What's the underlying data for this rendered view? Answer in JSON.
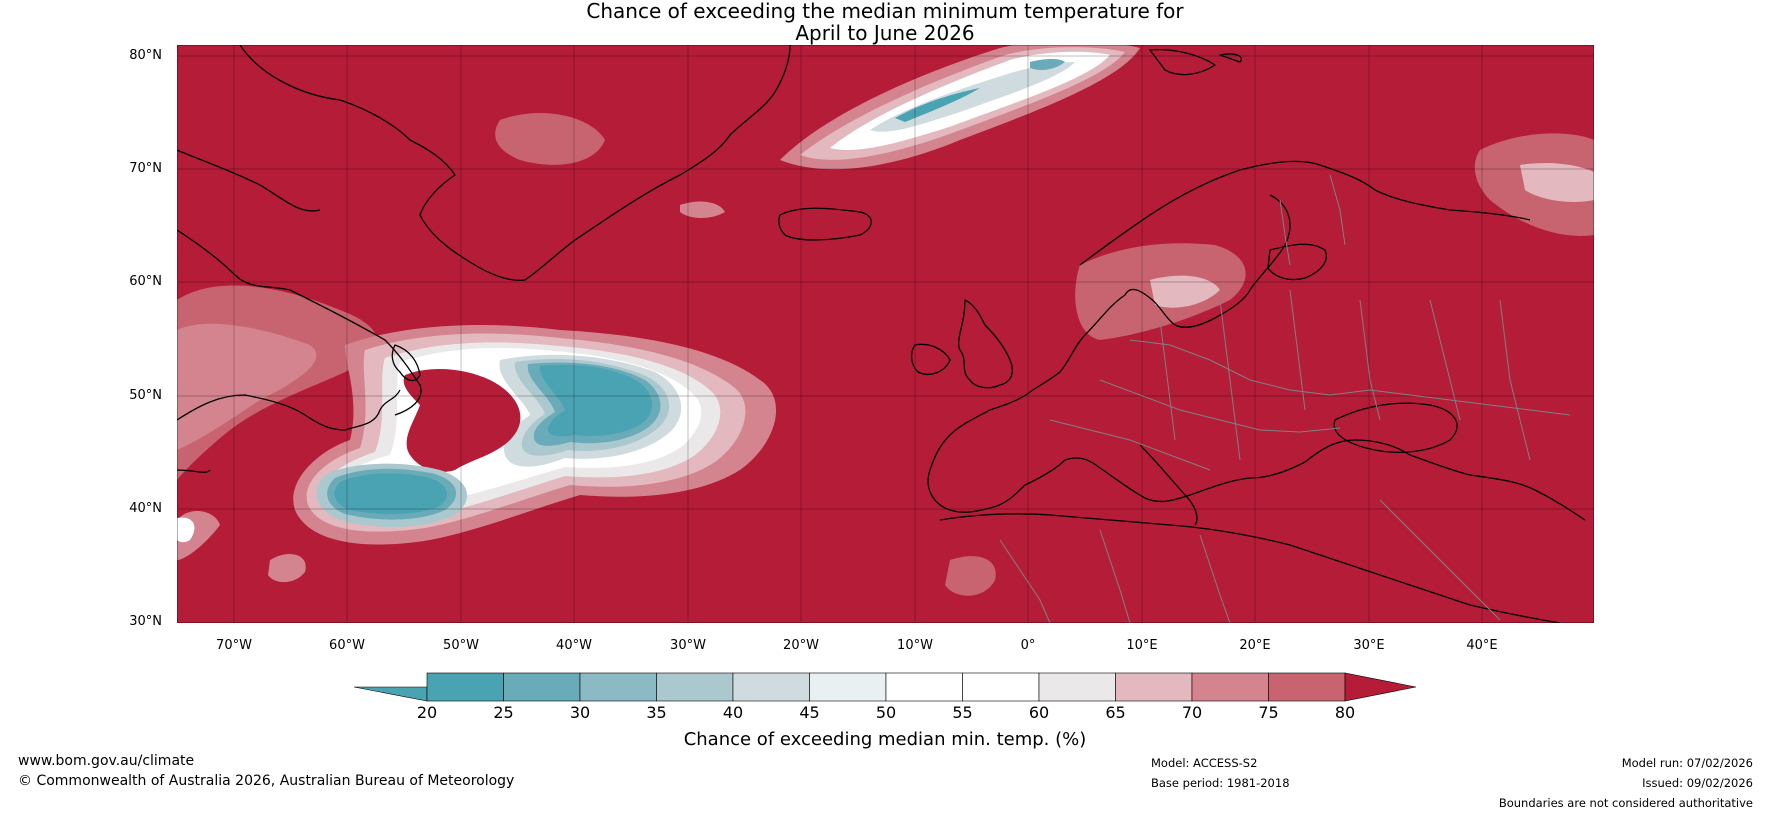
{
  "title": {
    "line1": "Chance of exceeding the median minimum temperature for",
    "line2": "April to June 2026"
  },
  "latitude_labels": [
    "80°N",
    "70°N",
    "60°N",
    "50°N",
    "40°N",
    "30°N"
  ],
  "longitude_labels": [
    "70°W",
    "60°W",
    "50°W",
    "40°W",
    "30°W",
    "20°W",
    "10°W",
    "0°",
    "10°E",
    "20°E",
    "30°E",
    "40°E"
  ],
  "legend": {
    "tick_labels": [
      "20",
      "25",
      "30",
      "35",
      "40",
      "45",
      "50",
      "55",
      "60",
      "65",
      "70",
      "75",
      "80"
    ],
    "title": "Chance of exceeding median min. temp. (%)",
    "colors": [
      "#4aa3b3",
      "#6aabba",
      "#8bbac5",
      "#aac8cd",
      "#cfdbde",
      "#e9f0f1",
      "#ffffff",
      "#ffffff",
      "#ebe8e9",
      "#e3b8be",
      "#d3848e",
      "#c8646f",
      "#bf4150",
      "#b41c38"
    ]
  },
  "colors": {
    "dominant": "#b41c38",
    "cool": "#4aa3b3",
    "coastline": "#000000",
    "borders": "#808080"
  },
  "footer": {
    "website": "www.bom.gov.au/climate",
    "copyright": "© Commonwealth of Australia 2026, Australian Bureau of Meteorology",
    "model": "Model: ACCESS-S2",
    "base_period": "Base period: 1981-2018",
    "model_run": "Model run: 07/02/2026",
    "issued": "Issued: 09/02/2026",
    "disclaimer": "Boundaries are not considered authoritative"
  }
}
